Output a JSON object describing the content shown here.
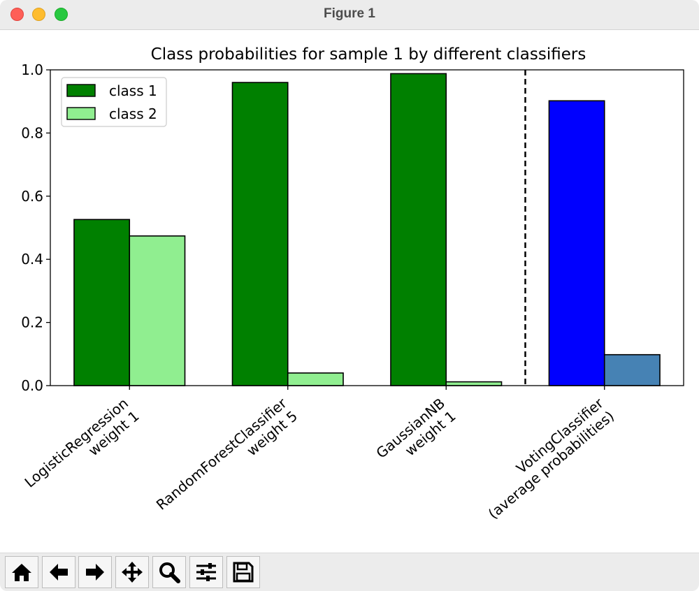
{
  "window": {
    "title": "Figure 1"
  },
  "chart_data": {
    "type": "bar",
    "title": "Class probabilities for sample 1 by different classifiers",
    "xlabel": "",
    "ylabel": "",
    "ylim": [
      0,
      1.0
    ],
    "yticks": [
      "0.0",
      "0.2",
      "0.4",
      "0.6",
      "0.8",
      "1.0"
    ],
    "categories": [
      [
        "LogisticRegression",
        "weight 1"
      ],
      [
        "RandomForestClassifier",
        "weight 5"
      ],
      [
        "GaussianNB",
        "weight 1"
      ],
      [
        "VotingClassifier",
        "(average probabilities)"
      ]
    ],
    "series": [
      {
        "name": "class 1",
        "values": [
          0.526,
          0.96,
          0.988,
          0.902
        ],
        "colors": [
          "#008000",
          "#008000",
          "#008000",
          "#0000ff"
        ]
      },
      {
        "name": "class 2",
        "values": [
          0.474,
          0.04,
          0.012,
          0.098
        ],
        "colors": [
          "#90ee90",
          "#90ee90",
          "#90ee90",
          "#4682b4"
        ]
      }
    ],
    "legend": {
      "position": "upper-left",
      "colors": [
        "#008000",
        "#90ee90"
      ]
    },
    "separator_line": {
      "style": "dashed",
      "between_categories": [
        2,
        3
      ]
    },
    "grid": false
  },
  "toolbar": {
    "buttons": [
      "home-icon",
      "back-arrow-icon",
      "forward-arrow-icon",
      "pan-icon",
      "zoom-icon",
      "configure-subplots-icon",
      "save-icon"
    ]
  }
}
